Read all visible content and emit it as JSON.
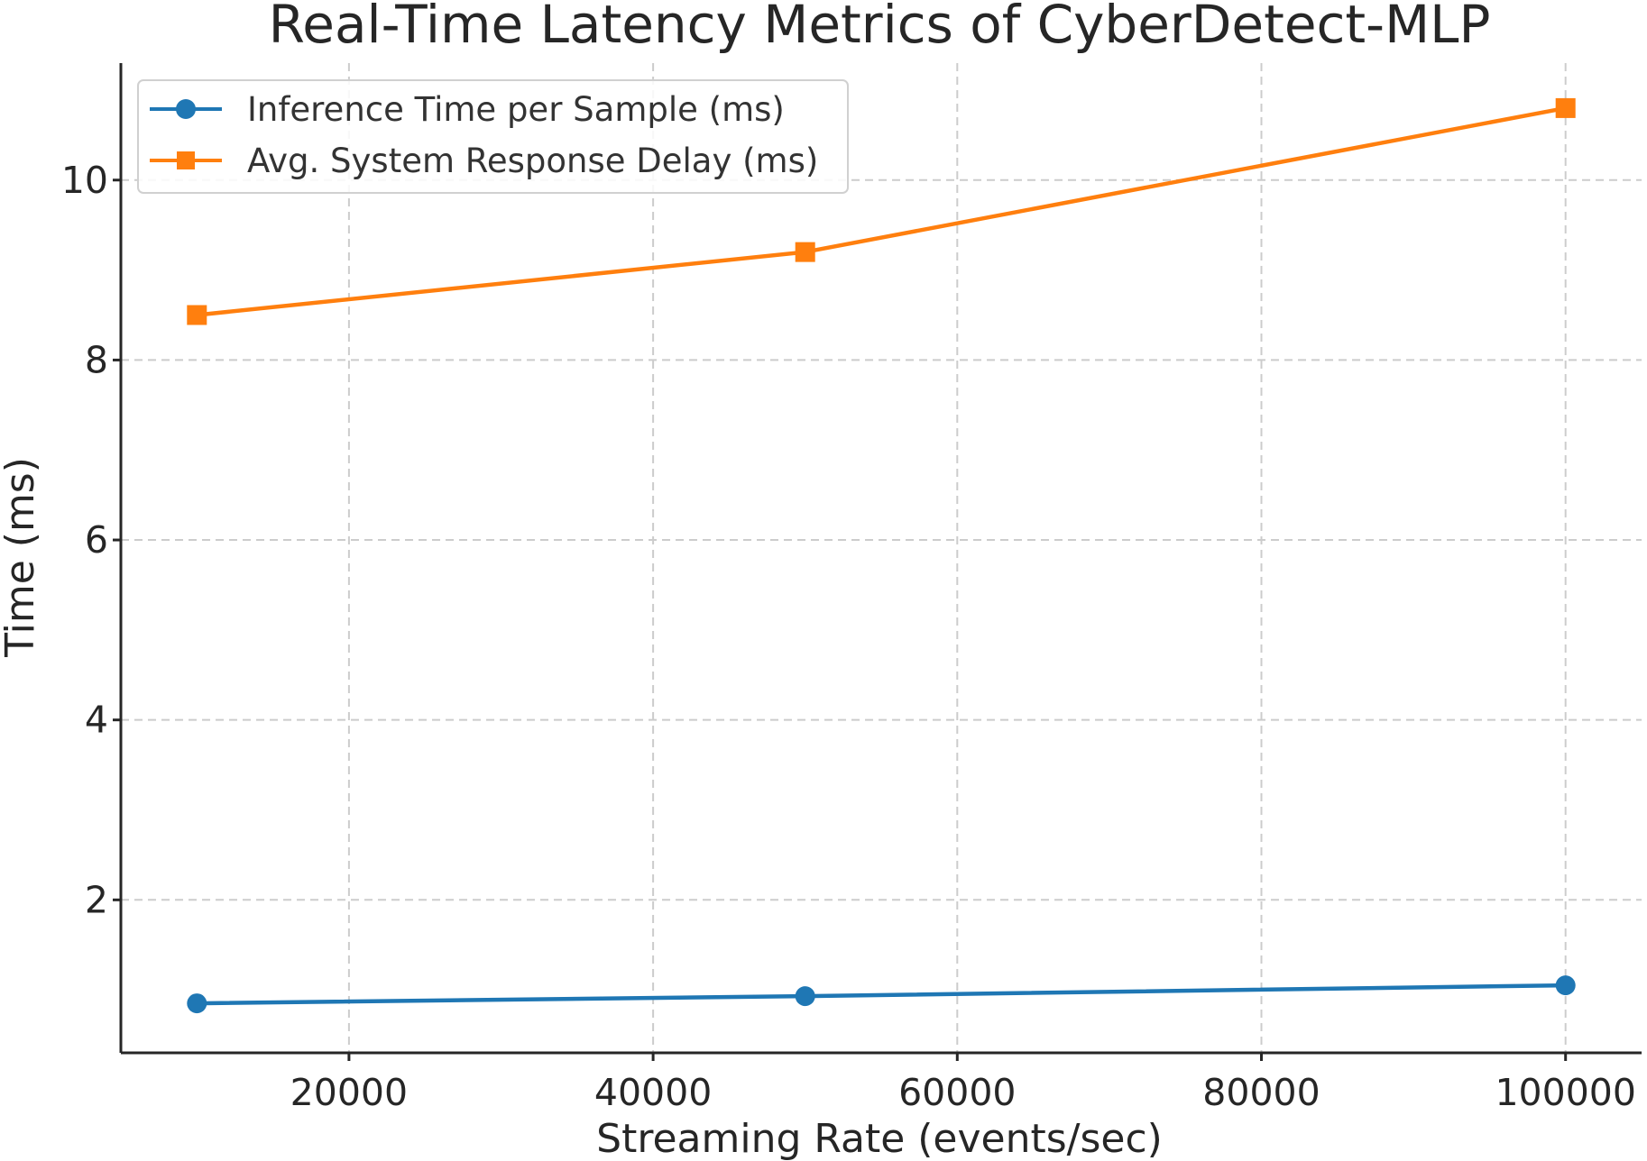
{
  "chart_data": {
    "type": "line",
    "title": "Real-Time Latency Metrics of CyberDetect-MLP",
    "xlabel": "Streaming Rate (events/sec)",
    "ylabel": "Time (ms)",
    "x": [
      10000,
      50000,
      100000
    ],
    "xlim": [
      5000,
      105000
    ],
    "ylim": [
      0.3,
      11.3
    ],
    "xticks": [
      20000,
      40000,
      60000,
      80000,
      100000
    ],
    "yticks": [
      2,
      4,
      6,
      8,
      10
    ],
    "grid": true,
    "legend_position": "top-left",
    "series": [
      {
        "name": "Inference Time per Sample (ms)",
        "values": [
          0.85,
          0.93,
          1.05
        ],
        "color": "#1f77b4",
        "marker": "circle"
      },
      {
        "name": "Avg. System Response Delay (ms)",
        "values": [
          8.5,
          9.2,
          10.8
        ],
        "color": "#ff7f0e",
        "marker": "square"
      }
    ]
  }
}
